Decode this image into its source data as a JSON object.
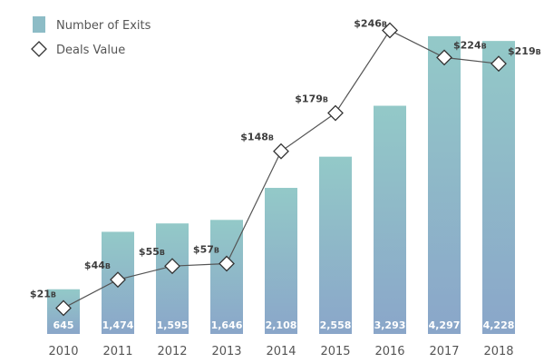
{
  "chart_data": {
    "type": "bar",
    "categories": [
      "2010",
      "2011",
      "2012",
      "2013",
      "2014",
      "2015",
      "2016",
      "2017",
      "2018"
    ],
    "series": [
      {
        "name": "Number of Exits",
        "type": "bar",
        "values": [
          645,
          1474,
          1595,
          1646,
          2108,
          2558,
          3293,
          4297,
          4228
        ],
        "labels": [
          "645",
          "1,474",
          "1,595",
          "1,646",
          "2,108",
          "2,558",
          "3,293",
          "4,297",
          "4,228"
        ]
      },
      {
        "name": "Deals Value",
        "type": "line",
        "values": [
          21,
          44,
          55,
          57,
          148,
          179,
          246,
          224,
          219
        ],
        "labels": [
          "$21",
          "$44",
          "$55",
          "$57",
          "$148",
          "$179",
          "$246",
          "$224",
          "$219"
        ],
        "unit": "B"
      }
    ],
    "legend": {
      "position": "top-left"
    },
    "grid": false,
    "colors": {
      "bar_top": "#93c9c8",
      "bar_bottom": "#8aa6c9",
      "legend_swatch": "#8dbcc6",
      "line": "#555555",
      "marker_fill": "#ffffff",
      "marker_stroke": "#333333",
      "text": "#555555"
    }
  }
}
